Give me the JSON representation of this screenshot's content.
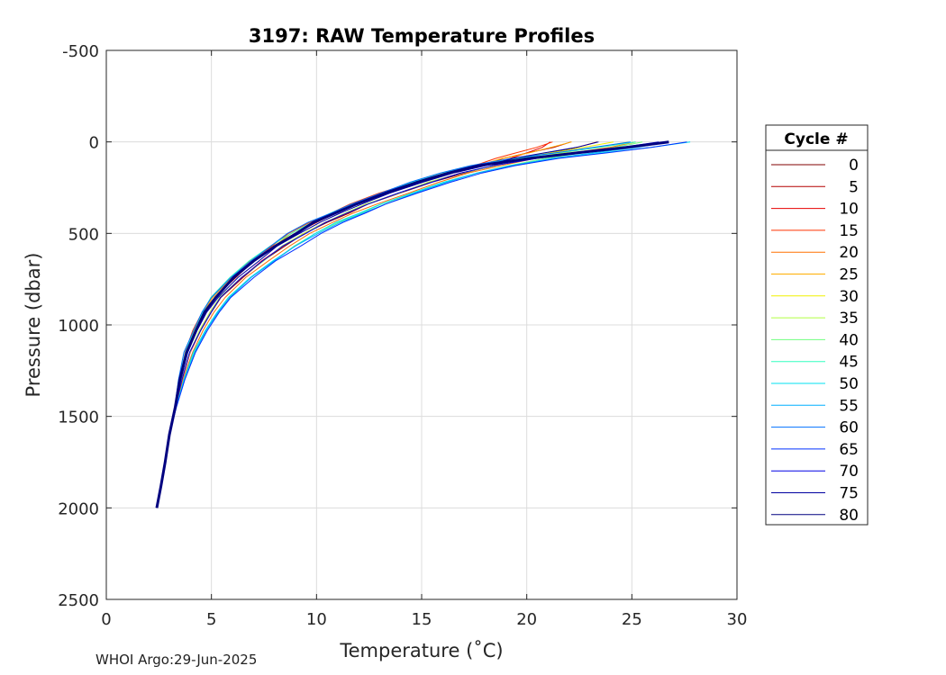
{
  "footer": "WHOI Argo:29-Jun-2025",
  "chart_data": {
    "type": "line",
    "title": "3197: RAW Temperature Profiles",
    "xlabel": "Temperature (˚C)",
    "ylabel": "Pressure (dbar)",
    "xlim": [
      0,
      30
    ],
    "ylim": [
      -500,
      2500
    ],
    "y_reversed": true,
    "x_ticks": [
      0,
      5,
      10,
      15,
      20,
      25,
      30
    ],
    "y_ticks": [
      -500,
      0,
      500,
      1000,
      1500,
      2000,
      2500
    ],
    "grid": true,
    "legend": {
      "title": "Cycle #",
      "placement": "right",
      "entries": [
        {
          "label": "0",
          "color": "#800000"
        },
        {
          "label": "5",
          "color": "#b30000"
        },
        {
          "label": "10",
          "color": "#e60000"
        },
        {
          "label": "15",
          "color": "#ff3300"
        },
        {
          "label": "20",
          "color": "#ff7000"
        },
        {
          "label": "25",
          "color": "#ffad00"
        },
        {
          "label": "30",
          "color": "#f0f000"
        },
        {
          "label": "35",
          "color": "#b0ff40"
        },
        {
          "label": "40",
          "color": "#70ff80"
        },
        {
          "label": "45",
          "color": "#30ffbf"
        },
        {
          "label": "50",
          "color": "#00e0f0"
        },
        {
          "label": "55",
          "color": "#00b0ff"
        },
        {
          "label": "60",
          "color": "#0070ff"
        },
        {
          "label": "65",
          "color": "#0030ff"
        },
        {
          "label": "70",
          "color": "#0000e6"
        },
        {
          "label": "75",
          "color": "#0000a0"
        },
        {
          "label": "80",
          "color": "#000080"
        }
      ]
    },
    "base_profile": [
      [
        26.2,
        0
      ],
      [
        24.5,
        30
      ],
      [
        22.5,
        60
      ],
      [
        20.5,
        90
      ],
      [
        18.5,
        130
      ],
      [
        17.0,
        170
      ],
      [
        15.5,
        220
      ],
      [
        14.0,
        280
      ],
      [
        12.5,
        340
      ],
      [
        11.5,
        390
      ],
      [
        10.5,
        440
      ],
      [
        9.5,
        500
      ],
      [
        8.5,
        570
      ],
      [
        7.5,
        650
      ],
      [
        6.5,
        740
      ],
      [
        5.5,
        850
      ],
      [
        5.0,
        930
      ],
      [
        4.5,
        1030
      ],
      [
        4.0,
        1150
      ],
      [
        3.6,
        1300
      ],
      [
        3.3,
        1450
      ],
      [
        3.0,
        1600
      ],
      [
        2.8,
        1750
      ],
      [
        2.6,
        1880
      ],
      [
        2.4,
        2000
      ]
    ]
  }
}
